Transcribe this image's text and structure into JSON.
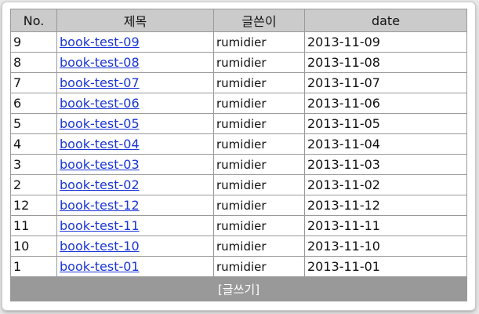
{
  "table": {
    "headers": {
      "no": "No.",
      "title": "제목",
      "author": "글쓴이",
      "date": "date"
    },
    "rows": [
      {
        "no": "9",
        "title": "book-test-09",
        "author": "rumidier",
        "date": "2013-11-09"
      },
      {
        "no": "8",
        "title": "book-test-08",
        "author": "rumidier",
        "date": "2013-11-08"
      },
      {
        "no": "7",
        "title": "book-test-07",
        "author": "rumidier",
        "date": "2013-11-07"
      },
      {
        "no": "6",
        "title": "book-test-06",
        "author": "rumidier",
        "date": "2013-11-06"
      },
      {
        "no": "5",
        "title": "book-test-05",
        "author": "rumidier",
        "date": "2013-11-05"
      },
      {
        "no": "4",
        "title": "book-test-04",
        "author": "rumidier",
        "date": "2013-11-04"
      },
      {
        "no": "3",
        "title": "book-test-03",
        "author": "rumidier",
        "date": "2013-11-03"
      },
      {
        "no": "2",
        "title": "book-test-02",
        "author": "rumidier",
        "date": "2013-11-02"
      },
      {
        "no": "12",
        "title": "book-test-12",
        "author": "rumidier",
        "date": "2013-11-12"
      },
      {
        "no": "11",
        "title": "book-test-11",
        "author": "rumidier",
        "date": "2013-11-11"
      },
      {
        "no": "10",
        "title": "book-test-10",
        "author": "rumidier",
        "date": "2013-11-10"
      },
      {
        "no": "1",
        "title": "book-test-01",
        "author": "rumidier",
        "date": "2013-11-01"
      }
    ],
    "footer": {
      "write_label": "[글쓰기]"
    }
  },
  "colors": {
    "header_bg": "#cbcbcb",
    "footer_bg": "#999999",
    "link": "#1a35d6",
    "border": "#9a9a9a"
  }
}
